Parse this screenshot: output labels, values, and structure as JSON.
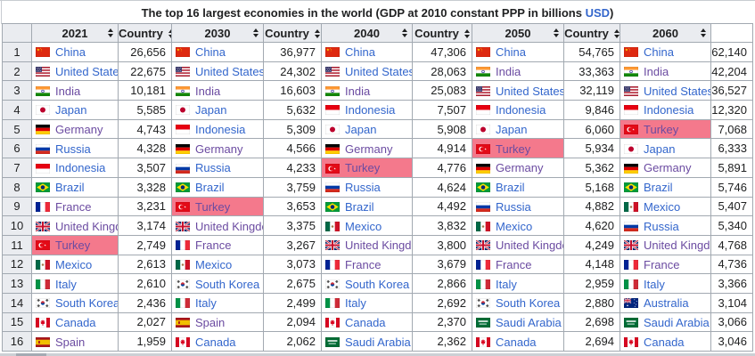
{
  "title": {
    "text_before_link": "The top 16 largest economies in the world (GDP at 2010 constant PPP in billions ",
    "link_text": "USD",
    "text_after_link": ")"
  },
  "colors": {
    "link_blue": "#3366cc",
    "visited_purple": "#6b4ba1",
    "highlight_pink": "#f4798c",
    "header_gray": "#eaecf0",
    "border_gray": "#a2a9b1"
  },
  "table": {
    "rank_header": "",
    "ranks": [
      "1",
      "2",
      "3",
      "4",
      "5",
      "6",
      "7",
      "8",
      "9",
      "10",
      "11",
      "12",
      "13",
      "14",
      "15",
      "16"
    ],
    "year_columns": [
      {
        "year": "2021",
        "country_header": "Country",
        "rows": [
          {
            "country": "China",
            "flag": "china",
            "value": "26,656",
            "visited": false,
            "highlight": false
          },
          {
            "country": "United States",
            "flag": "united-states",
            "value": "22,675",
            "visited": false,
            "highlight": false
          },
          {
            "country": "India",
            "flag": "india",
            "value": "10,181",
            "visited": true,
            "highlight": false
          },
          {
            "country": "Japan",
            "flag": "japan",
            "value": "5,585",
            "visited": false,
            "highlight": false
          },
          {
            "country": "Germany",
            "flag": "germany",
            "value": "4,743",
            "visited": true,
            "highlight": false
          },
          {
            "country": "Russia",
            "flag": "russia",
            "value": "4,328",
            "visited": false,
            "highlight": false
          },
          {
            "country": "Indonesia",
            "flag": "indonesia",
            "value": "3,507",
            "visited": false,
            "highlight": false
          },
          {
            "country": "Brazil",
            "flag": "brazil",
            "value": "3,328",
            "visited": false,
            "highlight": false
          },
          {
            "country": "France",
            "flag": "france",
            "value": "3,231",
            "visited": true,
            "highlight": false
          },
          {
            "country": "United Kingdom",
            "flag": "united-kingdom",
            "value": "3,174",
            "visited": true,
            "highlight": false
          },
          {
            "country": "Turkey",
            "flag": "turkey",
            "value": "2,749",
            "visited": true,
            "highlight": true
          },
          {
            "country": "Mexico",
            "flag": "mexico",
            "value": "2,613",
            "visited": false,
            "highlight": false
          },
          {
            "country": "Italy",
            "flag": "italy",
            "value": "2,610",
            "visited": false,
            "highlight": false
          },
          {
            "country": "South Korea",
            "flag": "south-korea",
            "value": "2,436",
            "visited": false,
            "highlight": false
          },
          {
            "country": "Canada",
            "flag": "canada",
            "value": "2,027",
            "visited": false,
            "highlight": false
          },
          {
            "country": "Spain",
            "flag": "spain",
            "value": "1,959",
            "visited": true,
            "highlight": false
          }
        ]
      },
      {
        "year": "2030",
        "country_header": "Country",
        "rows": [
          {
            "country": "China",
            "flag": "china",
            "value": "36,977",
            "visited": false,
            "highlight": false
          },
          {
            "country": "United States",
            "flag": "united-states",
            "value": "24,302",
            "visited": false,
            "highlight": false
          },
          {
            "country": "India",
            "flag": "india",
            "value": "16,603",
            "visited": true,
            "highlight": false
          },
          {
            "country": "Japan",
            "flag": "japan",
            "value": "5,632",
            "visited": false,
            "highlight": false
          },
          {
            "country": "Indonesia",
            "flag": "indonesia",
            "value": "5,309",
            "visited": false,
            "highlight": false
          },
          {
            "country": "Germany",
            "flag": "germany",
            "value": "4,566",
            "visited": true,
            "highlight": false
          },
          {
            "country": "Russia",
            "flag": "russia",
            "value": "4,233",
            "visited": false,
            "highlight": false
          },
          {
            "country": "Brazil",
            "flag": "brazil",
            "value": "3,759",
            "visited": false,
            "highlight": false
          },
          {
            "country": "Turkey",
            "flag": "turkey",
            "value": "3,653",
            "visited": true,
            "highlight": true
          },
          {
            "country": "United Kingdom",
            "flag": "united-kingdom",
            "value": "3,375",
            "visited": true,
            "highlight": false
          },
          {
            "country": "France",
            "flag": "france",
            "value": "3,267",
            "visited": true,
            "highlight": false
          },
          {
            "country": "Mexico",
            "flag": "mexico",
            "value": "3,073",
            "visited": false,
            "highlight": false
          },
          {
            "country": "South Korea",
            "flag": "south-korea",
            "value": "2,675",
            "visited": false,
            "highlight": false
          },
          {
            "country": "Italy",
            "flag": "italy",
            "value": "2,499",
            "visited": false,
            "highlight": false
          },
          {
            "country": "Spain",
            "flag": "spain",
            "value": "2,094",
            "visited": true,
            "highlight": false
          },
          {
            "country": "Canada",
            "flag": "canada",
            "value": "2,062",
            "visited": false,
            "highlight": false
          }
        ]
      },
      {
        "year": "2040",
        "country_header": "Country",
        "rows": [
          {
            "country": "China",
            "flag": "china",
            "value": "47,306",
            "visited": false,
            "highlight": false
          },
          {
            "country": "United States",
            "flag": "united-states",
            "value": "28,063",
            "visited": false,
            "highlight": false
          },
          {
            "country": "India",
            "flag": "india",
            "value": "25,083",
            "visited": true,
            "highlight": false
          },
          {
            "country": "Indonesia",
            "flag": "indonesia",
            "value": "7,507",
            "visited": false,
            "highlight": false
          },
          {
            "country": "Japan",
            "flag": "japan",
            "value": "5,908",
            "visited": false,
            "highlight": false
          },
          {
            "country": "Germany",
            "flag": "germany",
            "value": "4,914",
            "visited": true,
            "highlight": false
          },
          {
            "country": "Turkey",
            "flag": "turkey",
            "value": "4,776",
            "visited": true,
            "highlight": true
          },
          {
            "country": "Russia",
            "flag": "russia",
            "value": "4,624",
            "visited": false,
            "highlight": false
          },
          {
            "country": "Brazil",
            "flag": "brazil",
            "value": "4,492",
            "visited": false,
            "highlight": false
          },
          {
            "country": "Mexico",
            "flag": "mexico",
            "value": "3,832",
            "visited": false,
            "highlight": false
          },
          {
            "country": "United Kingdom",
            "flag": "united-kingdom",
            "value": "3,800",
            "visited": true,
            "highlight": false
          },
          {
            "country": "France",
            "flag": "france",
            "value": "3,679",
            "visited": true,
            "highlight": false
          },
          {
            "country": "South Korea",
            "flag": "south-korea",
            "value": "2,866",
            "visited": false,
            "highlight": false
          },
          {
            "country": "Italy",
            "flag": "italy",
            "value": "2,692",
            "visited": false,
            "highlight": false
          },
          {
            "country": "Canada",
            "flag": "canada",
            "value": "2,370",
            "visited": false,
            "highlight": false
          },
          {
            "country": "Saudi Arabia",
            "flag": "saudi-arabia",
            "value": "2,362",
            "visited": false,
            "highlight": false
          }
        ]
      },
      {
        "year": "2050",
        "country_header": "Country",
        "rows": [
          {
            "country": "China",
            "flag": "china",
            "value": "54,765",
            "visited": false,
            "highlight": false
          },
          {
            "country": "India",
            "flag": "india",
            "value": "33,363",
            "visited": true,
            "highlight": false
          },
          {
            "country": "United States",
            "flag": "united-states",
            "value": "32,119",
            "visited": false,
            "highlight": false
          },
          {
            "country": "Indonesia",
            "flag": "indonesia",
            "value": "9,846",
            "visited": false,
            "highlight": false
          },
          {
            "country": "Japan",
            "flag": "japan",
            "value": "6,060",
            "visited": false,
            "highlight": false
          },
          {
            "country": "Turkey",
            "flag": "turkey",
            "value": "5,934",
            "visited": true,
            "highlight": true
          },
          {
            "country": "Germany",
            "flag": "germany",
            "value": "5,362",
            "visited": true,
            "highlight": false
          },
          {
            "country": "Brazil",
            "flag": "brazil",
            "value": "5,168",
            "visited": false,
            "highlight": false
          },
          {
            "country": "Russia",
            "flag": "russia",
            "value": "4,882",
            "visited": false,
            "highlight": false
          },
          {
            "country": "Mexico",
            "flag": "mexico",
            "value": "4,620",
            "visited": false,
            "highlight": false
          },
          {
            "country": "United Kingdom",
            "flag": "united-kingdom",
            "value": "4,249",
            "visited": true,
            "highlight": false
          },
          {
            "country": "France",
            "flag": "france",
            "value": "4,148",
            "visited": true,
            "highlight": false
          },
          {
            "country": "Italy",
            "flag": "italy",
            "value": "2,959",
            "visited": false,
            "highlight": false
          },
          {
            "country": "South Korea",
            "flag": "south-korea",
            "value": "2,880",
            "visited": false,
            "highlight": false
          },
          {
            "country": "Saudi Arabia",
            "flag": "saudi-arabia",
            "value": "2,698",
            "visited": false,
            "highlight": false
          },
          {
            "country": "Canada",
            "flag": "canada",
            "value": "2,694",
            "visited": false,
            "highlight": false
          }
        ]
      },
      {
        "year": "2060",
        "country_header": "",
        "rows": [
          {
            "country": "China",
            "flag": "china",
            "value": "62,140",
            "visited": false,
            "highlight": false
          },
          {
            "country": "India",
            "flag": "india",
            "value": "42,204",
            "visited": true,
            "highlight": false
          },
          {
            "country": "United States",
            "flag": "united-states",
            "value": "36,527",
            "visited": false,
            "highlight": false
          },
          {
            "country": "Indonesia",
            "flag": "indonesia",
            "value": "12,320",
            "visited": false,
            "highlight": false
          },
          {
            "country": "Turkey",
            "flag": "turkey",
            "value": "7,068",
            "visited": true,
            "highlight": true
          },
          {
            "country": "Japan",
            "flag": "japan",
            "value": "6,333",
            "visited": false,
            "highlight": false
          },
          {
            "country": "Germany",
            "flag": "germany",
            "value": "5,891",
            "visited": true,
            "highlight": false
          },
          {
            "country": "Brazil",
            "flag": "brazil",
            "value": "5,746",
            "visited": false,
            "highlight": false
          },
          {
            "country": "Mexico",
            "flag": "mexico",
            "value": "5,407",
            "visited": false,
            "highlight": false
          },
          {
            "country": "Russia",
            "flag": "russia",
            "value": "5,340",
            "visited": false,
            "highlight": false
          },
          {
            "country": "United Kingdom",
            "flag": "united-kingdom",
            "value": "4,768",
            "visited": true,
            "highlight": false
          },
          {
            "country": "France",
            "flag": "france",
            "value": "4,736",
            "visited": true,
            "highlight": false
          },
          {
            "country": "Italy",
            "flag": "italy",
            "value": "3,366",
            "visited": false,
            "highlight": false
          },
          {
            "country": "Australia",
            "flag": "australia",
            "value": "3,104",
            "visited": false,
            "highlight": false
          },
          {
            "country": "Saudi Arabia",
            "flag": "saudi-arabia",
            "value": "3,066",
            "visited": false,
            "highlight": false
          },
          {
            "country": "Canada",
            "flag": "canada",
            "value": "3,046",
            "visited": false,
            "highlight": false
          }
        ]
      }
    ]
  }
}
